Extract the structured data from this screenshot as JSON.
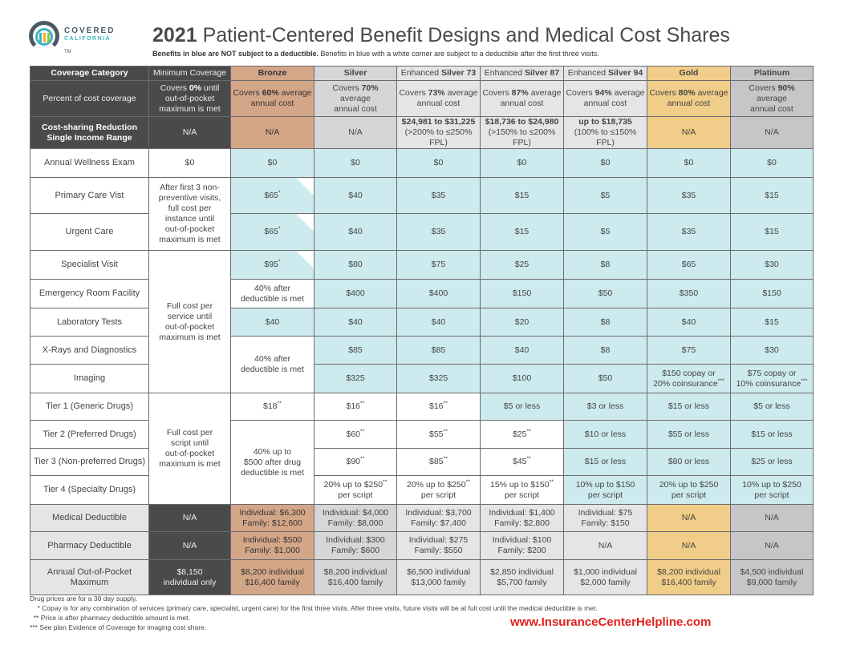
{
  "brand": {
    "name1": "COVERED",
    "name2": "CALIFORNIA",
    "tm": "TM"
  },
  "title": {
    "year": "2021",
    "rest": " Patient-Centered Benefit Designs and Medical Cost Shares"
  },
  "subtitle": {
    "bold": "Benefits in blue are NOT subject to a deductible.",
    "rest": " Benefits in blue with a white corner are subject to a deductible after the first three visits."
  },
  "colors": {
    "dark": "#4a4a4d",
    "bronze": "#d4a688",
    "silver": "#d6d6d8",
    "enhanced": "#e5e5e7",
    "gold": "#f0cd88",
    "platinum": "#c6c6c8",
    "no_deductible_blue": "#cdeaee",
    "website": "#e0201b"
  },
  "rows": [
    {
      "h": 18,
      "cells": [
        {
          "b": "Coverage Category",
          "c": "dark"
        },
        {
          "t": "Minimum Coverage",
          "c": "dark"
        },
        {
          "b": "Bronze",
          "c": "bronze"
        },
        {
          "b": "Silver",
          "c": "silver"
        },
        {
          "pre": "Enhanced ",
          "b": "Silver 73",
          "c": "light"
        },
        {
          "pre": "Enhanced ",
          "b": "Silver 87",
          "c": "light"
        },
        {
          "pre": "Enhanced ",
          "b": "Silver 94",
          "c": "light"
        },
        {
          "b": "Gold",
          "c": "gold"
        },
        {
          "b": "Platinum",
          "c": "plat"
        }
      ]
    },
    {
      "h": 45,
      "cells": [
        {
          "t": "Percent of cost coverage",
          "c": "dark"
        },
        {
          "pre": "Covers ",
          "b": "0%",
          "t": " until\nout-of-pocket\nmaximum is met",
          "c": "dark"
        },
        {
          "pre": "Covers ",
          "b": "60%",
          "t": " average\nannual cost",
          "c": "bronze"
        },
        {
          "pre": "Covers ",
          "b": "70%",
          "t": " average\nannual cost",
          "c": "silver"
        },
        {
          "pre": "Covers ",
          "b": "73%",
          "t": " average\nannual cost",
          "c": "light"
        },
        {
          "pre": "Covers ",
          "b": "87%",
          "t": " average\nannual cost",
          "c": "light"
        },
        {
          "pre": "Covers ",
          "b": "94%",
          "t": " average\nannual cost",
          "c": "light"
        },
        {
          "pre": "Covers ",
          "b": "80%",
          "t": " average\nannual cost",
          "c": "gold"
        },
        {
          "pre": "Covers ",
          "b": "90%",
          "t": " average\nannual cost",
          "c": "plat"
        }
      ]
    },
    {
      "h": 38,
      "cells": [
        {
          "b": "Cost-sharing Reduction\nSingle Income Range",
          "c": "dark"
        },
        {
          "t": "N/A",
          "c": "dark"
        },
        {
          "t": "N/A",
          "c": "bronze"
        },
        {
          "t": "N/A",
          "c": "silver"
        },
        {
          "b": "$24,981 to $31,225",
          "t": "\n(>200% to ≤250% FPL)",
          "c": "light"
        },
        {
          "b": "$18,736 to $24,980",
          "t": "\n(>150% to ≤200% FPL)",
          "c": "light"
        },
        {
          "b": "up to $18,735",
          "t": "\n(100% to ≤150% FPL)",
          "c": "light"
        },
        {
          "t": "N/A",
          "c": "gold"
        },
        {
          "t": "N/A",
          "c": "plat"
        }
      ]
    },
    {
      "h": 36,
      "cells": [
        {
          "t": "Annual Wellness Exam",
          "c": "lab"
        },
        {
          "t": "$0",
          "c": "white"
        },
        {
          "t": "$0",
          "c": "blue"
        },
        {
          "t": "$0",
          "c": "blue"
        },
        {
          "t": "$0",
          "c": "blue"
        },
        {
          "t": "$0",
          "c": "blue"
        },
        {
          "t": "$0",
          "c": "blue"
        },
        {
          "t": "$0",
          "c": "blue"
        },
        {
          "t": "$0",
          "c": "blue"
        }
      ]
    },
    {
      "h": 45,
      "cells": [
        {
          "t": "Primary Care Vist",
          "c": "lab"
        },
        {
          "t": "After first 3 non-\npreventive visits,\nfull cost per\ninstance until\nout-of-pocket\nmaximum is met",
          "c": "white",
          "rs": 2
        },
        {
          "t": "$65",
          "sup": "*",
          "c": "blue corner"
        },
        {
          "t": "$40",
          "c": "blue"
        },
        {
          "t": "$35",
          "c": "blue"
        },
        {
          "t": "$15",
          "c": "blue"
        },
        {
          "t": "$5",
          "c": "blue"
        },
        {
          "t": "$35",
          "c": "blue"
        },
        {
          "t": "$15",
          "c": "blue"
        }
      ]
    },
    {
      "h": 46,
      "cells": [
        {
          "t": "Urgent Care",
          "c": "lab"
        },
        {
          "t": "$65",
          "sup": "*",
          "c": "blue corner"
        },
        {
          "t": "$40",
          "c": "blue"
        },
        {
          "t": "$35",
          "c": "blue"
        },
        {
          "t": "$15",
          "c": "blue"
        },
        {
          "t": "$5",
          "c": "blue"
        },
        {
          "t": "$35",
          "c": "blue"
        },
        {
          "t": "$15",
          "c": "blue"
        }
      ]
    },
    {
      "h": 36,
      "cells": [
        {
          "t": "Specialist Visit",
          "c": "lab"
        },
        {
          "t": "Full cost per\nservice until\nout-of-pocket\nmaximum is met",
          "c": "white",
          "rs": 5
        },
        {
          "t": "$95",
          "sup": "*",
          "c": "blue corner"
        },
        {
          "t": "$80",
          "c": "blue"
        },
        {
          "t": "$75",
          "c": "blue"
        },
        {
          "t": "$25",
          "c": "blue"
        },
        {
          "t": "$8",
          "c": "blue"
        },
        {
          "t": "$65",
          "c": "blue"
        },
        {
          "t": "$30",
          "c": "blue"
        }
      ]
    },
    {
      "h": 36,
      "cells": [
        {
          "t": "Emergency Room Facility",
          "c": "lab"
        },
        {
          "t": "40% after\ndeductible is met",
          "c": "white"
        },
        {
          "t": "$400",
          "c": "blue"
        },
        {
          "t": "$400",
          "c": "blue"
        },
        {
          "t": "$150",
          "c": "blue"
        },
        {
          "t": "$50",
          "c": "blue"
        },
        {
          "t": "$350",
          "c": "blue"
        },
        {
          "t": "$150",
          "c": "blue"
        }
      ]
    },
    {
      "h": 35,
      "cells": [
        {
          "t": "Laboratory Tests",
          "c": "lab"
        },
        {
          "t": "$40",
          "c": "blue"
        },
        {
          "t": "$40",
          "c": "blue"
        },
        {
          "t": "$40",
          "c": "blue"
        },
        {
          "t": "$20",
          "c": "blue"
        },
        {
          "t": "$8",
          "c": "blue"
        },
        {
          "t": "$40",
          "c": "blue"
        },
        {
          "t": "$15",
          "c": "blue"
        }
      ]
    },
    {
      "h": 35,
      "cells": [
        {
          "t": "X-Rays and Diagnostics",
          "c": "lab"
        },
        {
          "t": "40% after\ndeductible is met",
          "c": "white",
          "rs": 2
        },
        {
          "t": "$85",
          "c": "blue"
        },
        {
          "t": "$85",
          "c": "blue"
        },
        {
          "t": "$40",
          "c": "blue"
        },
        {
          "t": "$8",
          "c": "blue"
        },
        {
          "t": "$75",
          "c": "blue"
        },
        {
          "t": "$30",
          "c": "blue"
        }
      ]
    },
    {
      "h": 36,
      "cells": [
        {
          "t": "Imaging",
          "c": "lab"
        },
        {
          "t": "$325",
          "c": "blue"
        },
        {
          "t": "$325",
          "c": "blue"
        },
        {
          "t": "$100",
          "c": "blue"
        },
        {
          "t": "$50",
          "c": "blue"
        },
        {
          "t": "$150 copay or\n20% coinsurance",
          "sup": "***",
          "c": "blue"
        },
        {
          "t": "$75 copay or\n10% coinsurance",
          "sup": "***",
          "c": "blue"
        }
      ]
    },
    {
      "h": 34,
      "cells": [
        {
          "t": "Tier 1 (Generic Drugs)",
          "c": "lab"
        },
        {
          "t": "Full cost per\nscript until\nout-of-pocket\nmaximum is met",
          "c": "white",
          "rs": 4
        },
        {
          "t": "$18",
          "sup": "**",
          "c": "white"
        },
        {
          "t": "$16",
          "sup": "**",
          "c": "white"
        },
        {
          "t": "$16",
          "sup": "**",
          "c": "white"
        },
        {
          "t": "$5 or less",
          "c": "blue"
        },
        {
          "t": "$3 or less",
          "c": "blue"
        },
        {
          "t": "$15 or less",
          "c": "blue"
        },
        {
          "t": "$5 or less",
          "c": "blue"
        }
      ]
    },
    {
      "h": 35,
      "cells": [
        {
          "t": "Tier 2 (Preferred Drugs)",
          "c": "lab"
        },
        {
          "t": "40% up to\n$500 after drug\ndeductible is met",
          "c": "white",
          "rs": 3
        },
        {
          "t": "$60",
          "sup": "**",
          "c": "white"
        },
        {
          "t": "$55",
          "sup": "**",
          "c": "white"
        },
        {
          "t": "$25",
          "sup": "**",
          "c": "white"
        },
        {
          "t": "$10 or less",
          "c": "blue"
        },
        {
          "t": "$55 or less",
          "c": "blue"
        },
        {
          "t": "$15 or less",
          "c": "blue"
        }
      ]
    },
    {
      "h": 34,
      "cells": [
        {
          "t": "Tier 3 (Non-preferred Drugs)",
          "c": "lab"
        },
        {
          "t": "$90",
          "sup": "**",
          "c": "white"
        },
        {
          "t": "$85",
          "sup": "**",
          "c": "white"
        },
        {
          "t": "$45",
          "sup": "**",
          "c": "white"
        },
        {
          "t": "$15 or less",
          "c": "blue"
        },
        {
          "t": "$80 or less",
          "c": "blue"
        },
        {
          "t": "$25 or less",
          "c": "blue"
        }
      ]
    },
    {
      "h": 36,
      "cells": [
        {
          "t": "Tier 4 (Specialty Drugs)",
          "c": "lab"
        },
        {
          "t": "20% up to $250",
          "sup": "**",
          "t2": "\nper script",
          "c": "white"
        },
        {
          "t": "20% up to $250",
          "sup": "**",
          "t2": "\nper script",
          "c": "white"
        },
        {
          "t": "15% up to $150",
          "sup": "**",
          "t2": "\nper script",
          "c": "white"
        },
        {
          "t": "10% up to $150\nper script",
          "c": "blue"
        },
        {
          "t": "20% up to $250\nper script",
          "c": "blue"
        },
        {
          "t": "10% up to $250\nper script",
          "c": "blue"
        }
      ]
    },
    {
      "h": 34,
      "cells": [
        {
          "t": "Medical Deductible",
          "c": "labg"
        },
        {
          "t": "N/A",
          "c": "dark"
        },
        {
          "t": "Individual: $6,300\nFamily: $12,600",
          "c": "bronze"
        },
        {
          "t": "Individual: $4,000\nFamily: $8,000",
          "c": "silver"
        },
        {
          "t": "Individual: $3,700\nFamily: $7,400",
          "c": "light"
        },
        {
          "t": "Individual: $1,400\nFamily: $2,800",
          "c": "light"
        },
        {
          "t": "Individual: $75\nFamily: $150",
          "c": "light"
        },
        {
          "t": "N/A",
          "c": "gold"
        },
        {
          "t": "N/A",
          "c": "plat"
        }
      ]
    },
    {
      "h": 35,
      "cells": [
        {
          "t": "Pharmacy Deductible",
          "c": "labg"
        },
        {
          "t": "N/A",
          "c": "dark"
        },
        {
          "t": "Individual: $500\nFamily: $1,000",
          "c": "bronze"
        },
        {
          "t": "Individual: $300\nFamily: $600",
          "c": "silver"
        },
        {
          "t": "Individual: $275\nFamily: $550",
          "c": "light"
        },
        {
          "t": "Individual: $100\nFamily: $200",
          "c": "light"
        },
        {
          "t": "N/A",
          "c": "light"
        },
        {
          "t": "N/A",
          "c": "gold"
        },
        {
          "t": "N/A",
          "c": "plat"
        }
      ]
    },
    {
      "h": 44,
      "cells": [
        {
          "t": "Annual Out-of-Pocket\nMaximum",
          "c": "labg"
        },
        {
          "t": "$8,150\nindividual only",
          "c": "dark"
        },
        {
          "t": "$8,200 individual\n$16,400 family",
          "c": "bronze"
        },
        {
          "t": "$8,200 individual\n$16,400 family",
          "c": "silver"
        },
        {
          "t": "$6,500 individual\n$13,000 family",
          "c": "light"
        },
        {
          "t": "$2,850 individual\n$5,700 family",
          "c": "light"
        },
        {
          "t": "$1,000 individual\n$2,000 family",
          "c": "light"
        },
        {
          "t": "$8,200 individual\n$16,400 family",
          "c": "gold"
        },
        {
          "t": "$4,500 individual\n$9,000 family",
          "c": "plat"
        }
      ]
    }
  ],
  "notes": [
    "Drug prices are for a 30 day supply.",
    "    * Copay is for any combination of services (primary care, specialist, urgent care) for the first three visits. After three visits, future visits will be at full cost until the medical deductible is met.",
    "  ** Price is after pharmacy deductible amount is met.",
    "*** See plan Evidence of Coverage for imaging cost share."
  ],
  "website": "www.InsuranceCenterHelpline.com"
}
